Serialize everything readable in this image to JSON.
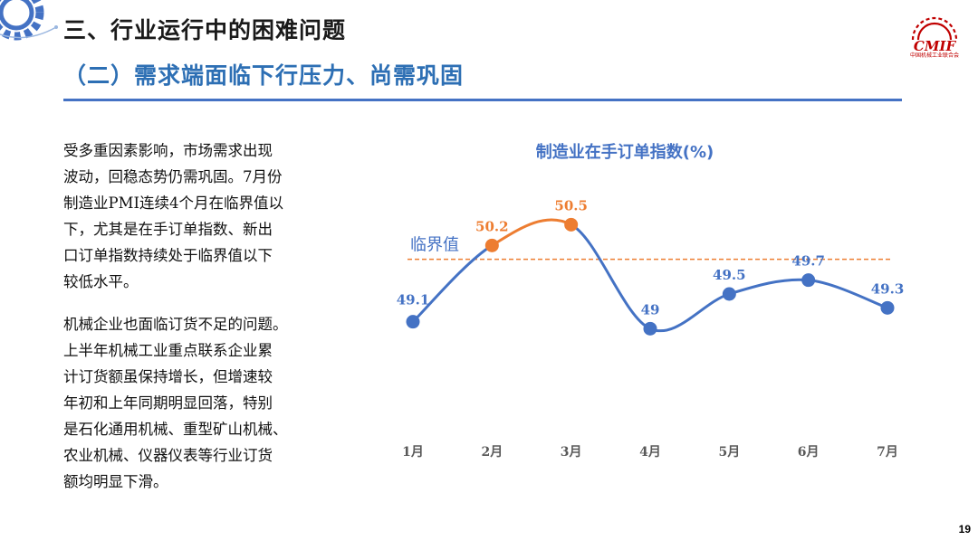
{
  "header": {
    "title": "三、行业运行中的困难问题",
    "subtitle": "（二）需求端面临下行压力、尚需巩固"
  },
  "logo": {
    "text": "CMIF",
    "caption": "中国机械工业联合会"
  },
  "body": {
    "paragraph_1": "受多重因素影响，市场需求出现\n波动，回稳态势仍需巩固。7月份\n制造业PMI连续4个月在临界值以\n下，尤其是在手订单指数、新出\n口订单指数持续处于临界值以下\n较低水平。",
    "paragraph_2": "机械企业也面临订货不足的问题。\n上半年机械工业重点联系企业累\n计订货额虽保持增长，但增速较\n年初和上年同期明显回落，特别\n是石化通用机械、重型矿山机械、\n农业机械、仪器仪表等行业订货\n额均明显下滑。"
  },
  "chart_data": {
    "type": "line",
    "title": "制造业在手订单指数(%)",
    "categories": [
      "1月",
      "2月",
      "3月",
      "4月",
      "5月",
      "6月",
      "7月"
    ],
    "values": [
      49.1,
      50.2,
      50.5,
      49,
      49.5,
      49.7,
      49.3
    ],
    "value_labels": [
      "49.1",
      "50.2",
      "50.5",
      "49",
      "49.5",
      "49.7",
      "49.3"
    ],
    "highlighted_indices": [
      1,
      2
    ],
    "reference_line": {
      "value": 50,
      "label": "临界值"
    },
    "ylim": [
      48.0,
      51.0
    ],
    "smooth": true,
    "grid": false,
    "colors": {
      "series": "#4472c4",
      "highlight": "#ed7d31",
      "reference": "#ed7d31",
      "title": "#4472c4",
      "data_labels": "#4472c4",
      "axis_labels": "#595959"
    }
  },
  "footer": {
    "page_number": "19"
  }
}
